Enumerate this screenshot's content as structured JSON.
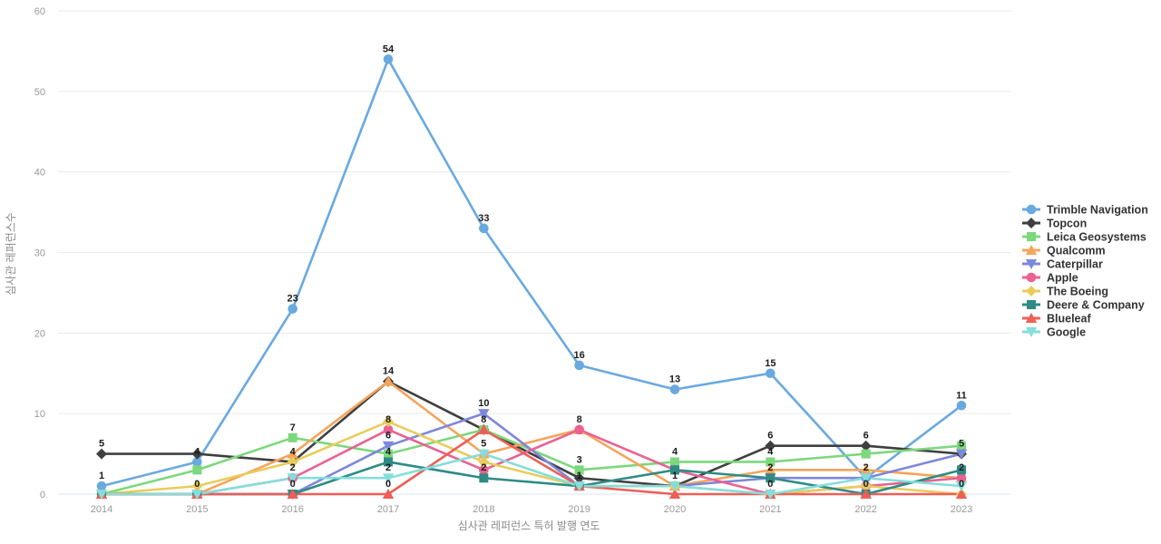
{
  "chart_data": {
    "type": "line",
    "title": "",
    "xlabel": "심사관 레퍼런스 특허 발행 연도",
    "ylabel": "심사관 레퍼런스수",
    "x": [
      2014,
      2015,
      2016,
      2017,
      2018,
      2019,
      2020,
      2021,
      2022,
      2023
    ],
    "ylim": [
      0,
      60
    ],
    "yticks": [
      0,
      10,
      20,
      30,
      40,
      50,
      60
    ],
    "grid": true,
    "legend_position": "right",
    "series": [
      {
        "name": "Trimble Navigation",
        "color": "#69A9E0",
        "marker": "circle",
        "values": [
          1,
          4,
          23,
          54,
          33,
          16,
          13,
          15,
          2,
          11
        ],
        "labels": [
          1,
          4,
          23,
          54,
          33,
          16,
          13,
          15,
          2,
          11
        ]
      },
      {
        "name": "Topcon",
        "color": "#3F3F3F",
        "marker": "diamond",
        "values": [
          5,
          5,
          4,
          14,
          8,
          2,
          1,
          6,
          6,
          5
        ],
        "labels": [
          5,
          null,
          4,
          null,
          null,
          null,
          null,
          6,
          6,
          5
        ]
      },
      {
        "name": "Leica Geosystems",
        "color": "#7CD87C",
        "marker": "square",
        "values": [
          0,
          3,
          7,
          5,
          8,
          3,
          4,
          4,
          5,
          6
        ],
        "labels": [
          null,
          null,
          7,
          null,
          null,
          3,
          4,
          4,
          null,
          null
        ]
      },
      {
        "name": "Qualcomm",
        "color": "#F6A45B",
        "marker": "triangle-up",
        "values": [
          0,
          0,
          5,
          14,
          5,
          8,
          1,
          3,
          3,
          2
        ],
        "labels": [
          null,
          null,
          null,
          14,
          null,
          null,
          null,
          null,
          null,
          2
        ]
      },
      {
        "name": "Caterpillar",
        "color": "#7D87DB",
        "marker": "triangle-down",
        "values": [
          0,
          0,
          0,
          6,
          10,
          1,
          1,
          2,
          2,
          5
        ],
        "labels": [
          null,
          null,
          null,
          6,
          10,
          null,
          null,
          null,
          null,
          null
        ]
      },
      {
        "name": "Apple",
        "color": "#EA6192",
        "marker": "circle",
        "values": [
          0,
          0,
          2,
          8,
          3,
          8,
          3,
          0,
          1,
          2
        ],
        "labels": [
          null,
          null,
          null,
          8,
          null,
          8,
          null,
          null,
          null,
          null
        ]
      },
      {
        "name": "The Boeing",
        "color": "#E8CD5C",
        "marker": "diamond",
        "values": [
          0,
          1,
          4,
          9,
          4,
          1,
          1,
          0,
          1,
          0
        ],
        "labels": [
          null,
          null,
          null,
          null,
          null,
          null,
          null,
          null,
          null,
          null
        ]
      },
      {
        "name": "Deere & Company",
        "color": "#2E8B85",
        "marker": "square",
        "values": [
          0,
          0,
          0,
          4,
          2,
          1,
          3,
          2,
          0,
          3
        ],
        "labels": [
          null,
          null,
          0,
          4,
          2,
          1,
          null,
          2,
          0,
          null
        ]
      },
      {
        "name": "Blueleaf",
        "color": "#EC5F57",
        "marker": "triangle-up",
        "values": [
          0,
          0,
          0,
          0,
          8,
          1,
          0,
          0,
          0,
          0
        ],
        "labels": [
          null,
          0,
          null,
          0,
          8,
          null,
          null,
          0,
          null,
          0
        ]
      },
      {
        "name": "Google",
        "color": "#84DEDB",
        "marker": "triangle-down",
        "values": [
          0,
          0,
          2,
          2,
          5,
          1,
          1,
          0,
          2,
          1
        ],
        "labels": [
          null,
          null,
          2,
          2,
          5,
          null,
          1,
          null,
          null,
          null
        ]
      }
    ]
  }
}
